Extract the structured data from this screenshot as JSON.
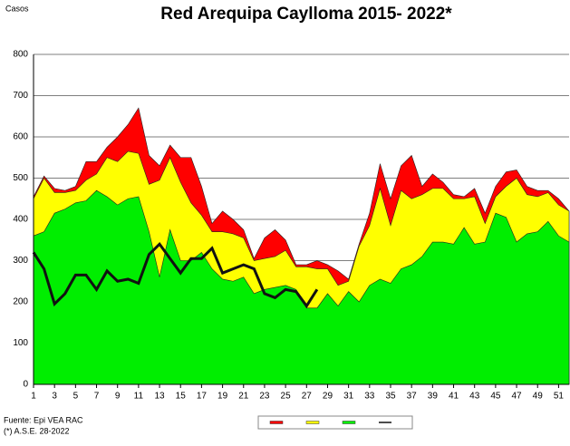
{
  "chart_data": {
    "type": "area",
    "title": "Red Arequipa Caylloma 2015- 2022*",
    "y_label": "Casos",
    "notes": [
      "Fuente: Epi VEA RAC",
      "(*) A.S.E. 28-2022"
    ],
    "x": [
      1,
      2,
      3,
      4,
      5,
      6,
      7,
      8,
      9,
      10,
      11,
      12,
      13,
      14,
      15,
      16,
      17,
      18,
      19,
      20,
      21,
      22,
      23,
      24,
      25,
      26,
      27,
      28,
      29,
      30,
      31,
      32,
      33,
      34,
      35,
      36,
      37,
      38,
      39,
      40,
      41,
      42,
      43,
      44,
      45,
      46,
      47,
      48,
      49,
      50,
      51,
      52
    ],
    "xlim": [
      1,
      52
    ],
    "xticks": [
      1,
      3,
      5,
      7,
      9,
      11,
      13,
      15,
      17,
      19,
      21,
      23,
      25,
      27,
      29,
      31,
      33,
      35,
      37,
      39,
      41,
      43,
      45,
      47,
      49,
      51
    ],
    "ylim": [
      0,
      800
    ],
    "yticks": [
      0,
      100,
      200,
      300,
      400,
      500,
      600,
      700,
      800
    ],
    "grid": true,
    "series": [
      {
        "color": "#ff0000",
        "values": [
          455,
          505,
          475,
          470,
          480,
          540,
          540,
          575,
          600,
          630,
          670,
          555,
          530,
          580,
          550,
          550,
          480,
          390,
          420,
          400,
          375,
          305,
          355,
          375,
          350,
          290,
          290,
          300,
          290,
          275,
          255,
          340,
          415,
          535,
          450,
          530,
          555,
          480,
          510,
          490,
          460,
          455,
          475,
          415,
          480,
          515,
          520,
          480,
          470,
          470,
          450,
          420
        ]
      },
      {
        "color": "#ffff00",
        "values": [
          450,
          500,
          465,
          465,
          470,
          495,
          510,
          550,
          540,
          565,
          560,
          485,
          495,
          550,
          490,
          440,
          410,
          370,
          370,
          365,
          355,
          300,
          305,
          310,
          325,
          285,
          285,
          280,
          280,
          240,
          250,
          335,
          385,
          475,
          385,
          470,
          450,
          460,
          475,
          475,
          450,
          450,
          455,
          390,
          455,
          480,
          500,
          460,
          455,
          465,
          435,
          420
        ]
      },
      {
        "color": "#00ee00",
        "values": [
          360,
          370,
          415,
          425,
          440,
          445,
          470,
          455,
          435,
          450,
          455,
          370,
          260,
          375,
          300,
          300,
          320,
          280,
          255,
          250,
          260,
          220,
          230,
          235,
          240,
          230,
          185,
          185,
          220,
          190,
          225,
          200,
          240,
          255,
          245,
          280,
          290,
          310,
          345,
          345,
          340,
          380,
          340,
          345,
          415,
          405,
          345,
          365,
          370,
          395,
          360,
          345
        ]
      },
      {
        "color": "#111111",
        "type": "line",
        "values": [
          320,
          280,
          195,
          220,
          265,
          265,
          230,
          275,
          250,
          255,
          245,
          315,
          340,
          305,
          270,
          305,
          305,
          330,
          270,
          280,
          290,
          280,
          220,
          210,
          230,
          225,
          190,
          230,
          null,
          null,
          null,
          null,
          null,
          null,
          null,
          null,
          null,
          null,
          null,
          null,
          null,
          null,
          null,
          null,
          null,
          null,
          null,
          null,
          null,
          null,
          null,
          null
        ]
      }
    ]
  }
}
